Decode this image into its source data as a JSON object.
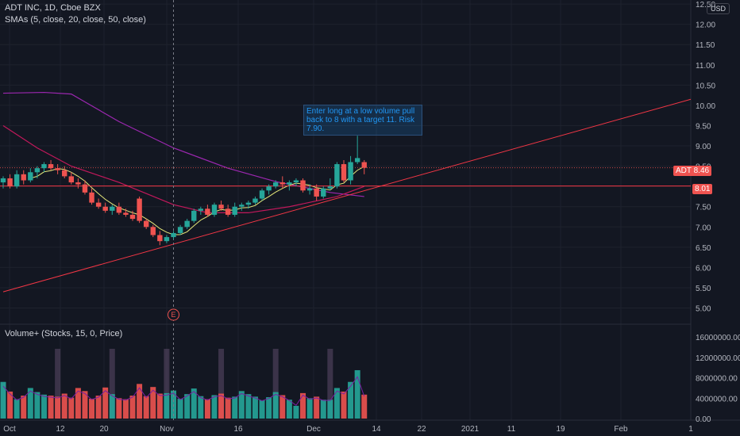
{
  "header": {
    "title": "ADT INC, 1D, Cboe BZX",
    "sma_label": "SMAs (5, close, 20, close, 50, close)",
    "volume_label": "Volume+ (Stocks, 15, 0, Price)",
    "currency": "USD"
  },
  "annotation": {
    "text": "Enter long at a low volume pull back to 8 with a target 11. Risk 7.90."
  },
  "price_badges": {
    "ticker": "ADT",
    "last": "8.46",
    "level": "8.01"
  },
  "earnings_marker": "E",
  "colors": {
    "background": "#131722",
    "up": "#26a69a",
    "down": "#ef5350",
    "sma5": "#e6e87a",
    "sma20": "#c2185b",
    "sma50": "#9c27b0",
    "trendline": "#f23645",
    "note": "#2196f3"
  },
  "chart_data": {
    "type": "candlestick",
    "price_axis": {
      "ylim": [
        4.6,
        12.6
      ],
      "ticks": [
        "12.50",
        "12.00",
        "11.50",
        "11.00",
        "10.50",
        "10.00",
        "9.50",
        "9.00",
        "8.50",
        "8.00",
        "7.50",
        "7.00",
        "6.50",
        "6.00",
        "5.50",
        "5.00"
      ]
    },
    "x_ticks": [
      "Oct",
      "12",
      "20",
      "Nov",
      "16",
      "Dec",
      "14",
      "22",
      "2021",
      "11",
      "19",
      "Feb",
      "1"
    ],
    "candles": [
      {
        "date": "Oct 01",
        "open": 8.1,
        "high": 8.25,
        "low": 7.95,
        "close": 8.2
      },
      {
        "date": "Oct 02",
        "open": 8.2,
        "high": 8.3,
        "low": 7.95,
        "close": 8.0
      },
      {
        "date": "Oct 05",
        "open": 8.0,
        "high": 8.4,
        "low": 7.95,
        "close": 8.3
      },
      {
        "date": "Oct 06",
        "open": 8.3,
        "high": 8.4,
        "low": 8.05,
        "close": 8.15
      },
      {
        "date": "Oct 07",
        "open": 8.15,
        "high": 8.45,
        "low": 8.1,
        "close": 8.35
      },
      {
        "date": "Oct 08",
        "open": 8.35,
        "high": 8.5,
        "low": 8.2,
        "close": 8.45
      },
      {
        "date": "Oct 09",
        "open": 8.45,
        "high": 8.6,
        "low": 8.35,
        "close": 8.55
      },
      {
        "date": "Oct 12",
        "open": 8.55,
        "high": 8.65,
        "low": 8.4,
        "close": 8.45
      },
      {
        "date": "Oct 13",
        "open": 8.45,
        "high": 8.55,
        "low": 8.3,
        "close": 8.4
      },
      {
        "date": "Oct 14",
        "open": 8.4,
        "high": 8.5,
        "low": 8.2,
        "close": 8.25
      },
      {
        "date": "Oct 15",
        "open": 8.25,
        "high": 8.35,
        "low": 8.05,
        "close": 8.1
      },
      {
        "date": "Oct 16",
        "open": 8.1,
        "high": 8.2,
        "low": 7.95,
        "close": 8.05
      },
      {
        "date": "Oct 19",
        "open": 8.05,
        "high": 8.15,
        "low": 7.8,
        "close": 7.85
      },
      {
        "date": "Oct 20",
        "open": 7.85,
        "high": 7.95,
        "low": 7.55,
        "close": 7.6
      },
      {
        "date": "Oct 21",
        "open": 7.6,
        "high": 7.7,
        "low": 7.45,
        "close": 7.5
      },
      {
        "date": "Oct 22",
        "open": 7.5,
        "high": 7.6,
        "low": 7.35,
        "close": 7.4
      },
      {
        "date": "Oct 23",
        "open": 7.4,
        "high": 7.55,
        "low": 7.3,
        "close": 7.5
      },
      {
        "date": "Oct 26",
        "open": 7.5,
        "high": 7.6,
        "low": 7.3,
        "close": 7.35
      },
      {
        "date": "Oct 27",
        "open": 7.35,
        "high": 7.45,
        "low": 7.25,
        "close": 7.3
      },
      {
        "date": "Oct 28",
        "open": 7.3,
        "high": 7.4,
        "low": 7.15,
        "close": 7.2
      },
      {
        "date": "Oct 29",
        "open": 7.7,
        "high": 7.75,
        "low": 7.1,
        "close": 7.15
      },
      {
        "date": "Oct 30",
        "open": 7.15,
        "high": 7.2,
        "low": 6.95,
        "close": 7.0
      },
      {
        "date": "Nov 02",
        "open": 7.0,
        "high": 7.05,
        "low": 6.75,
        "close": 6.8
      },
      {
        "date": "Nov 03",
        "open": 6.8,
        "high": 6.9,
        "low": 6.55,
        "close": 6.65
      },
      {
        "date": "Nov 04",
        "open": 6.65,
        "high": 6.8,
        "low": 6.6,
        "close": 6.75
      },
      {
        "date": "Nov 05",
        "open": 6.75,
        "high": 6.9,
        "low": 6.7,
        "close": 6.85
      },
      {
        "date": "Nov 06",
        "open": 6.85,
        "high": 7.05,
        "low": 6.8,
        "close": 7.0
      },
      {
        "date": "Nov 09",
        "open": 7.0,
        "high": 7.2,
        "low": 6.95,
        "close": 7.15
      },
      {
        "date": "Nov 10",
        "open": 7.15,
        "high": 7.45,
        "low": 7.1,
        "close": 7.4
      },
      {
        "date": "Nov 11",
        "open": 7.4,
        "high": 7.5,
        "low": 7.3,
        "close": 7.45
      },
      {
        "date": "Nov 12",
        "open": 7.45,
        "high": 7.55,
        "low": 7.25,
        "close": 7.3
      },
      {
        "date": "Nov 13",
        "open": 7.3,
        "high": 7.6,
        "low": 7.25,
        "close": 7.55
      },
      {
        "date": "Nov 16",
        "open": 7.55,
        "high": 7.65,
        "low": 7.4,
        "close": 7.45
      },
      {
        "date": "Nov 17",
        "open": 7.45,
        "high": 7.55,
        "low": 7.25,
        "close": 7.3
      },
      {
        "date": "Nov 18",
        "open": 7.3,
        "high": 7.6,
        "low": 7.25,
        "close": 7.5
      },
      {
        "date": "Nov 19",
        "open": 7.5,
        "high": 7.6,
        "low": 7.4,
        "close": 7.55
      },
      {
        "date": "Nov 20",
        "open": 7.55,
        "high": 7.65,
        "low": 7.45,
        "close": 7.6
      },
      {
        "date": "Nov 23",
        "open": 7.6,
        "high": 7.75,
        "low": 7.55,
        "close": 7.7
      },
      {
        "date": "Nov 24",
        "open": 7.7,
        "high": 7.95,
        "low": 7.65,
        "close": 7.9
      },
      {
        "date": "Nov 25",
        "open": 7.9,
        "high": 8.05,
        "low": 7.8,
        "close": 8.0
      },
      {
        "date": "Nov 27",
        "open": 8.0,
        "high": 8.15,
        "low": 7.95,
        "close": 8.1
      },
      {
        "date": "Nov 30",
        "open": 8.1,
        "high": 8.25,
        "low": 7.95,
        "close": 8.05
      },
      {
        "date": "Dec 01",
        "open": 8.05,
        "high": 8.15,
        "low": 7.9,
        "close": 8.1
      },
      {
        "date": "Dec 02",
        "open": 8.1,
        "high": 8.2,
        "low": 8.0,
        "close": 8.15
      },
      {
        "date": "Dec 03",
        "open": 8.15,
        "high": 8.2,
        "low": 7.85,
        "close": 7.9
      },
      {
        "date": "Dec 04",
        "open": 7.9,
        "high": 8.05,
        "low": 7.8,
        "close": 7.95
      },
      {
        "date": "Dec 07",
        "open": 7.95,
        "high": 8.05,
        "low": 7.65,
        "close": 7.75
      },
      {
        "date": "Dec 08",
        "open": 7.75,
        "high": 8.0,
        "low": 7.7,
        "close": 7.95
      },
      {
        "date": "Dec 09",
        "open": 7.95,
        "high": 8.2,
        "low": 7.9,
        "close": 8.0
      },
      {
        "date": "Dec 10",
        "open": 8.0,
        "high": 8.6,
        "low": 7.95,
        "close": 8.55
      },
      {
        "date": "Dec 11",
        "open": 8.55,
        "high": 8.65,
        "low": 8.1,
        "close": 8.15
      },
      {
        "date": "Dec 14",
        "open": 8.15,
        "high": 8.75,
        "low": 8.05,
        "close": 8.6
      },
      {
        "date": "Dec 15",
        "open": 8.6,
        "high": 9.25,
        "low": 8.55,
        "close": 8.7
      },
      {
        "date": "Dec 16",
        "open": 8.6,
        "high": 8.65,
        "low": 8.3,
        "close": 8.46
      }
    ],
    "sma50": {
      "dates": [
        "Oct 01",
        "Oct 09",
        "Oct 15",
        "Oct 26",
        "Nov 05",
        "Nov 17",
        "Nov 27",
        "Dec 09",
        "Dec 16"
      ],
      "values": [
        10.3,
        10.32,
        10.28,
        9.6,
        8.95,
        8.45,
        8.12,
        7.85,
        7.75
      ]
    },
    "sma20": {
      "dates": [
        "Oct 01",
        "Oct 08",
        "Oct 15",
        "Oct 26",
        "Nov 05",
        "Nov 12",
        "Nov 20",
        "Dec 01",
        "Dec 10",
        "Dec 16"
      ],
      "values": [
        9.5,
        8.95,
        8.5,
        8.1,
        7.55,
        7.35,
        7.35,
        7.5,
        7.75,
        8.0
      ]
    },
    "trendline": {
      "dates": [
        "Oct 01",
        "Feb 01"
      ],
      "values": [
        5.4,
        10.15
      ]
    },
    "horizontal_level": 8.01,
    "earnings_date": "Nov 05",
    "volume": {
      "ylim": [
        0,
        16500000
      ],
      "ticks": [
        "16000000.00",
        "12000000.00",
        "8000000.00",
        "4000000.00",
        "0.00"
      ],
      "values": [
        7200000,
        5300000,
        3800000,
        4500000,
        6000000,
        5200000,
        4700000,
        4500000,
        4300000,
        4900000,
        4100000,
        6000000,
        5400000,
        3900000,
        4500000,
        6100000,
        4800000,
        4000000,
        3800000,
        4500000,
        6800000,
        4400000,
        6200000,
        4900000,
        5000000,
        5500000,
        3900000,
        4800000,
        5900000,
        4400000,
        3800000,
        4600000,
        4900000,
        4100000,
        4300000,
        5400000,
        4800000,
        4300000,
        3600000,
        4200000,
        5200000,
        4600000,
        3700000,
        2500000,
        5000000,
        4000000,
        4300000,
        3700000,
        3700000,
        6000000,
        5300000,
        7200000,
        9500000,
        4700000
      ],
      "ghost_peaks": [
        7000000,
        13700000,
        13700000,
        13700000,
        13700000,
        13700000,
        13700000
      ]
    }
  }
}
